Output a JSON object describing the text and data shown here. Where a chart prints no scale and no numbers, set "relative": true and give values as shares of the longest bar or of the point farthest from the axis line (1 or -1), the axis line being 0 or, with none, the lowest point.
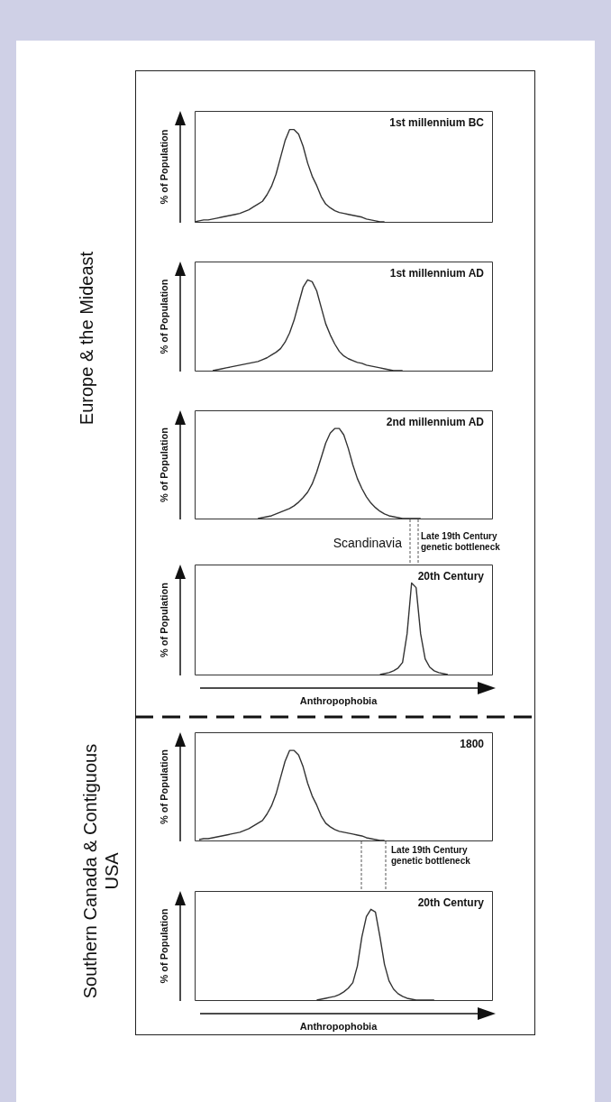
{
  "chart_data": [
    {
      "type": "line",
      "title": "1st millennium BC",
      "ylabel": "% of Population",
      "relative": true,
      "tick_labels": false,
      "annotations": [
        "Europe & the Mideast"
      ],
      "categories": [
        null,
        null,
        null,
        null,
        null,
        null,
        null,
        null,
        null,
        null,
        null,
        null,
        null,
        null,
        null,
        null,
        null,
        null,
        null,
        null,
        null,
        null,
        null,
        null,
        null,
        null,
        null,
        null,
        null,
        null,
        null,
        null,
        null,
        null,
        null,
        null,
        null,
        null,
        null,
        null,
        null,
        null,
        null,
        null,
        null,
        null,
        null,
        null,
        null,
        null,
        null,
        null,
        null,
        null,
        null,
        null,
        null,
        null,
        null,
        null,
        null,
        null,
        null,
        null,
        null,
        null,
        null
      ],
      "series": [
        {
          "color": "#333333",
          "values": [
            0.01,
            0.02,
            0.03,
            0.03,
            0.04,
            0.05,
            0.06,
            0.07,
            0.08,
            0.09,
            0.1,
            0.12,
            0.14,
            0.17,
            0.2,
            0.23,
            0.3,
            0.39,
            0.52,
            0.7,
            0.88,
            1,
            1,
            0.95,
            0.82,
            0.64,
            0.5,
            0.4,
            0.28,
            0.2,
            0.16,
            0.13,
            0.11,
            0.1,
            0.09,
            0.08,
            0.07,
            0.06,
            0.04,
            0.03,
            0.02,
            0.01,
            0.01,
            null,
            null,
            null,
            null,
            null,
            null,
            null,
            null,
            null,
            null,
            null,
            null,
            null,
            null,
            null,
            null,
            null,
            null,
            null,
            null,
            null,
            null,
            null,
            null
          ]
        }
      ]
    },
    {
      "type": "line",
      "title": "1st millennium AD",
      "ylabel": "% of Population",
      "relative": true,
      "tick_labels": false,
      "categories": [
        null,
        null,
        null,
        null,
        null,
        null,
        null,
        null,
        null,
        null,
        null,
        null,
        null,
        null,
        null,
        null,
        null,
        null,
        null,
        null,
        null,
        null,
        null,
        null,
        null,
        null,
        null,
        null,
        null,
        null,
        null,
        null,
        null,
        null,
        null,
        null,
        null,
        null,
        null,
        null,
        null,
        null,
        null,
        null,
        null,
        null,
        null,
        null,
        null,
        null,
        null,
        null,
        null,
        null,
        null,
        null,
        null,
        null,
        null,
        null,
        null,
        null,
        null,
        null,
        null,
        null,
        null
      ],
      "series": [
        {
          "color": "#333333",
          "values": [
            null,
            null,
            null,
            null,
            0.01,
            0.02,
            0.03,
            0.04,
            0.05,
            0.06,
            0.07,
            0.08,
            0.09,
            0.1,
            0.11,
            0.13,
            0.15,
            0.18,
            0.21,
            0.25,
            0.32,
            0.42,
            0.56,
            0.74,
            0.92,
            1,
            0.98,
            0.88,
            0.7,
            0.52,
            0.4,
            0.3,
            0.22,
            0.17,
            0.14,
            0.12,
            0.1,
            0.09,
            0.07,
            0.06,
            0.05,
            0.04,
            0.03,
            0.02,
            0.01,
            0.01,
            0.01,
            null,
            null,
            null,
            null,
            null,
            null,
            null,
            null,
            null,
            null,
            null,
            null,
            null,
            null,
            null,
            null,
            null,
            null,
            null,
            null
          ]
        }
      ]
    },
    {
      "type": "line",
      "title": "2nd millennium AD",
      "ylabel": "% of Population",
      "relative": true,
      "tick_labels": false,
      "categories": [
        null,
        null,
        null,
        null,
        null,
        null,
        null,
        null,
        null,
        null,
        null,
        null,
        null,
        null,
        null,
        null,
        null,
        null,
        null,
        null,
        null,
        null,
        null,
        null,
        null,
        null,
        null,
        null,
        null,
        null,
        null,
        null,
        null,
        null,
        null,
        null,
        null,
        null,
        null,
        null,
        null,
        null,
        null,
        null,
        null,
        null,
        null,
        null,
        null,
        null,
        null,
        null,
        null,
        null,
        null,
        null,
        null,
        null,
        null,
        null,
        null,
        null,
        null,
        null,
        null,
        null,
        null
      ],
      "series": [
        {
          "color": "#333333",
          "values": [
            null,
            null,
            null,
            null,
            null,
            null,
            null,
            null,
            null,
            null,
            null,
            null,
            null,
            null,
            0.01,
            0.02,
            0.03,
            0.04,
            0.06,
            0.08,
            0.1,
            0.12,
            0.15,
            0.19,
            0.24,
            0.3,
            0.39,
            0.52,
            0.68,
            0.84,
            0.95,
            1,
            1,
            0.93,
            0.78,
            0.6,
            0.45,
            0.34,
            0.25,
            0.18,
            0.13,
            0.09,
            0.06,
            0.04,
            0.03,
            0.02,
            0.01,
            0.01,
            0.01,
            0.01,
            0.01,
            null,
            null,
            null,
            null,
            null,
            null,
            null,
            null,
            null,
            null,
            null,
            null,
            null,
            null,
            null,
            null
          ]
        }
      ]
    },
    {
      "type": "line",
      "title": "20th Century",
      "ylabel": "% of Population",
      "xlabel": "Anthropophobia",
      "relative": true,
      "tick_labels": false,
      "annotations": [
        "Scandinavia",
        "Late 19th Century genetic bottleneck"
      ],
      "categories": [
        null,
        null,
        null,
        null,
        null,
        null,
        null,
        null,
        null,
        null,
        null,
        null,
        null,
        null,
        null,
        null,
        null,
        null,
        null,
        null,
        null,
        null,
        null,
        null,
        null,
        null,
        null,
        null,
        null,
        null,
        null,
        null,
        null,
        null,
        null,
        null,
        null,
        null,
        null,
        null,
        null,
        null,
        null,
        null,
        null,
        null,
        null,
        null,
        null,
        null,
        null,
        null,
        null,
        null,
        null,
        null,
        null,
        null,
        null,
        null,
        null,
        null,
        null,
        null,
        null,
        null,
        null
      ],
      "series": [
        {
          "color": "#333333",
          "values": [
            null,
            null,
            null,
            null,
            null,
            null,
            null,
            null,
            null,
            null,
            null,
            null,
            null,
            null,
            null,
            null,
            null,
            null,
            null,
            null,
            null,
            null,
            null,
            null,
            null,
            null,
            null,
            null,
            null,
            null,
            null,
            null,
            null,
            null,
            null,
            null,
            null,
            null,
            null,
            null,
            null,
            0.01,
            0.02,
            0.03,
            0.05,
            0.08,
            0.14,
            0.45,
            1,
            0.95,
            0.45,
            0.18,
            0.09,
            0.05,
            0.03,
            0.02,
            0.01,
            null,
            null,
            null,
            null,
            null,
            null,
            null,
            null,
            null,
            null
          ]
        }
      ]
    },
    {
      "type": "line",
      "title": "1800",
      "ylabel": "% of Population",
      "relative": true,
      "tick_labels": false,
      "annotations": [
        "Southern Canada & Contiguous USA"
      ],
      "categories": [
        null,
        null,
        null,
        null,
        null,
        null,
        null,
        null,
        null,
        null,
        null,
        null,
        null,
        null,
        null,
        null,
        null,
        null,
        null,
        null,
        null,
        null,
        null,
        null,
        null,
        null,
        null,
        null,
        null,
        null,
        null,
        null,
        null,
        null,
        null,
        null,
        null,
        null,
        null,
        null,
        null,
        null,
        null,
        null,
        null,
        null,
        null,
        null,
        null,
        null,
        null,
        null,
        null,
        null,
        null,
        null,
        null,
        null,
        null,
        null,
        null,
        null,
        null,
        null,
        null,
        null,
        null
      ],
      "series": [
        {
          "color": "#333333",
          "values": [
            null,
            0.02,
            0.03,
            0.03,
            0.04,
            0.05,
            0.06,
            0.07,
            0.08,
            0.09,
            0.1,
            0.12,
            0.14,
            0.17,
            0.2,
            0.23,
            0.3,
            0.39,
            0.52,
            0.7,
            0.88,
            1,
            1,
            0.95,
            0.82,
            0.64,
            0.5,
            0.4,
            0.28,
            0.2,
            0.16,
            0.13,
            0.11,
            0.1,
            0.09,
            0.08,
            0.07,
            0.06,
            0.04,
            0.03,
            0.02,
            0.01,
            0.01,
            null,
            null,
            null,
            null,
            null,
            null,
            null,
            null,
            null,
            null,
            null,
            null,
            null,
            null,
            null,
            null,
            null,
            null,
            null,
            null,
            null,
            null,
            null,
            null
          ]
        }
      ]
    },
    {
      "type": "line",
      "title": "20th Century",
      "ylabel": "% of Population",
      "xlabel": "Anthropophobia",
      "relative": true,
      "tick_labels": false,
      "annotations": [
        "Late 19th Century genetic bottleneck"
      ],
      "categories": [
        null,
        null,
        null,
        null,
        null,
        null,
        null,
        null,
        null,
        null,
        null,
        null,
        null,
        null,
        null,
        null,
        null,
        null,
        null,
        null,
        null,
        null,
        null,
        null,
        null,
        null,
        null,
        null,
        null,
        null,
        null,
        null,
        null,
        null,
        null,
        null,
        null,
        null,
        null,
        null,
        null,
        null,
        null,
        null,
        null,
        null,
        null,
        null,
        null,
        null,
        null,
        null,
        null,
        null,
        null,
        null,
        null,
        null,
        null,
        null,
        null,
        null,
        null,
        null,
        null,
        null,
        null
      ],
      "series": [
        {
          "color": "#333333",
          "values": [
            null,
            null,
            null,
            null,
            null,
            null,
            null,
            null,
            null,
            null,
            null,
            null,
            null,
            null,
            null,
            null,
            null,
            null,
            null,
            null,
            null,
            null,
            null,
            null,
            null,
            null,
            null,
            0.01,
            0.02,
            0.03,
            0.04,
            0.05,
            0.07,
            0.1,
            0.14,
            0.2,
            0.38,
            0.7,
            0.92,
            1,
            0.97,
            0.7,
            0.4,
            0.22,
            0.13,
            0.08,
            0.05,
            0.03,
            0.02,
            0.01,
            0.01,
            0.01,
            0.01,
            0.01,
            null,
            null,
            null,
            null,
            null,
            null,
            null,
            null,
            null,
            null,
            null,
            null,
            null
          ]
        }
      ]
    }
  ]
}
